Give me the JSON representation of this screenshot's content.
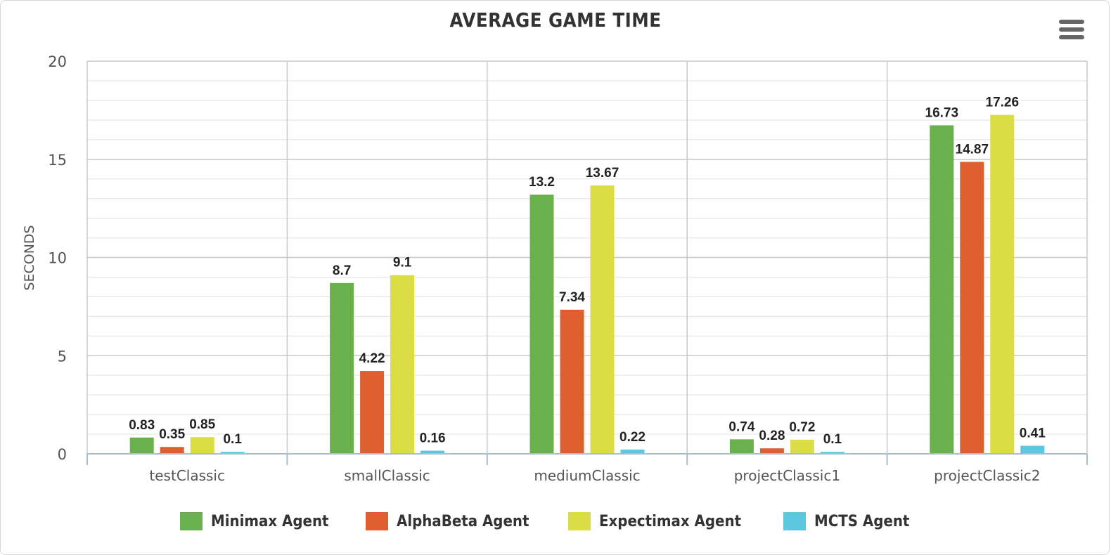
{
  "chart_data": {
    "type": "bar",
    "title": "AVERAGE GAME TIME",
    "xlabel": "",
    "ylabel": "SECONDS",
    "ylim": [
      0,
      20
    ],
    "yticks": [
      "0",
      "5",
      "10",
      "15",
      "20"
    ],
    "categories": [
      "testClassic",
      "smallClassic",
      "mediumClassic",
      "projectClassic1",
      "projectClassic2"
    ],
    "series": [
      {
        "name": "Minimax Agent",
        "color": "#6ab04c",
        "values": [
          0.83,
          8.7,
          13.2,
          0.74,
          16.73
        ],
        "labels": [
          "0.83",
          "8.7",
          "13.2",
          "0.74",
          "16.73"
        ]
      },
      {
        "name": "AlphaBeta Agent",
        "color": "#e05f2f",
        "values": [
          0.35,
          4.22,
          7.34,
          0.28,
          14.87
        ],
        "labels": [
          "0.35",
          "4.22",
          "7.34",
          "0.28",
          "14.87"
        ]
      },
      {
        "name": "Expectimax Agent",
        "color": "#dcdc44",
        "values": [
          0.85,
          9.1,
          13.67,
          0.72,
          17.26
        ],
        "labels": [
          "0.85",
          "9.1",
          "13.67",
          "0.72",
          "17.26"
        ]
      },
      {
        "name": "MCTS Agent",
        "color": "#5bc8e0",
        "values": [
          0.1,
          0.16,
          0.22,
          0.1,
          0.41
        ],
        "labels": [
          "0.1",
          "0.16",
          "0.22",
          "0.1",
          "0.41"
        ]
      }
    ],
    "grid": true,
    "legend": "bottom"
  },
  "menu_icon": "hamburger-menu-icon"
}
